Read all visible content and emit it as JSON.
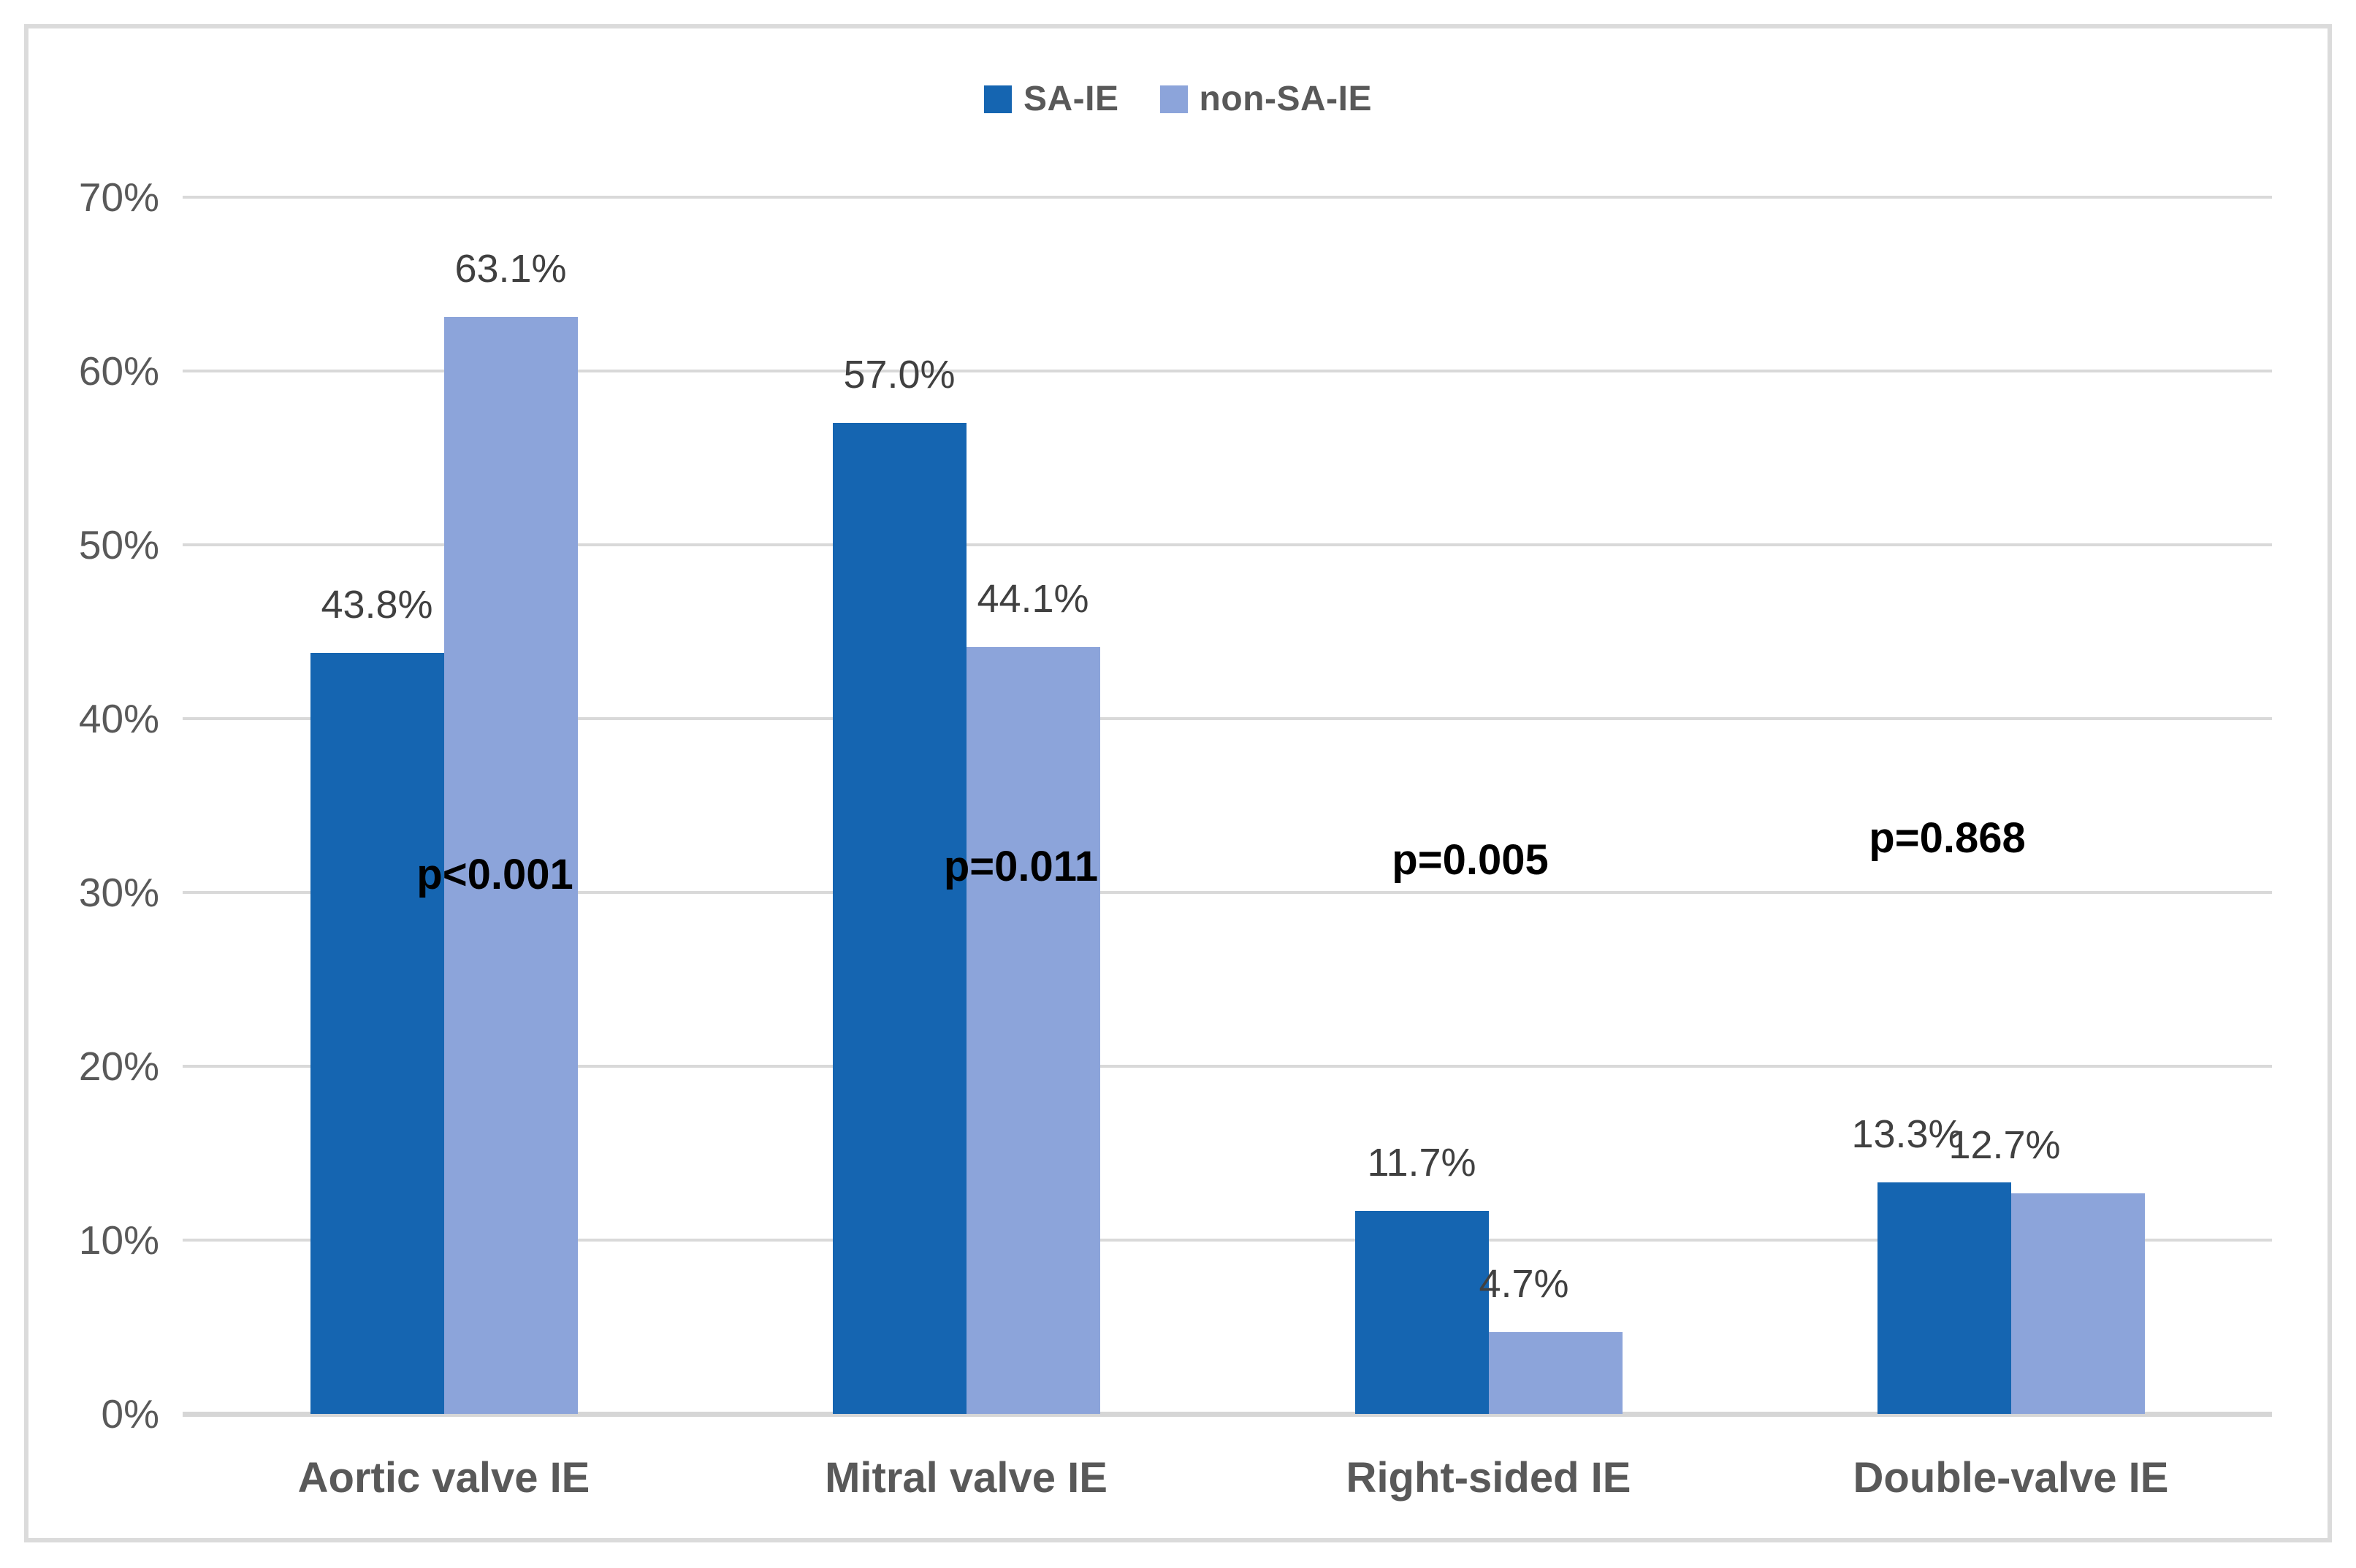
{
  "chart_data": {
    "type": "bar",
    "categories": [
      "Aortic valve IE",
      "Mitral valve IE",
      "Right-sided IE",
      "Double-valve IE"
    ],
    "series": [
      {
        "name": "SA-IE",
        "color": "#1565B1",
        "values": [
          43.8,
          57.0,
          11.7,
          13.3
        ],
        "labels": [
          "43.8%",
          "57.0%",
          "11.7%",
          "13.3%"
        ]
      },
      {
        "name": "non-SA-IE",
        "color": "#8CA4DA",
        "values": [
          63.1,
          44.1,
          4.7,
          12.7
        ],
        "labels": [
          "63.1%",
          "44.1%",
          "4.7%",
          "12.7%"
        ]
      }
    ],
    "p_values": [
      "p<0.001",
      "p=0.011",
      "p=0.005",
      "p=0.868"
    ],
    "title": "",
    "xlabel": "",
    "ylabel": "",
    "ylim": [
      0,
      70
    ],
    "y_ticks": [
      "0%",
      "10%",
      "20%",
      "30%",
      "40%",
      "50%",
      "60%",
      "70%"
    ],
    "grid": true,
    "legend_position": "top",
    "colors": {
      "grid": "#D9D9D9",
      "axis_text": "#595959",
      "data_label_text": "#404040",
      "p_value_text": "#000000",
      "frame_border": "#DBDBDB",
      "background": "#FFFFFF"
    }
  }
}
